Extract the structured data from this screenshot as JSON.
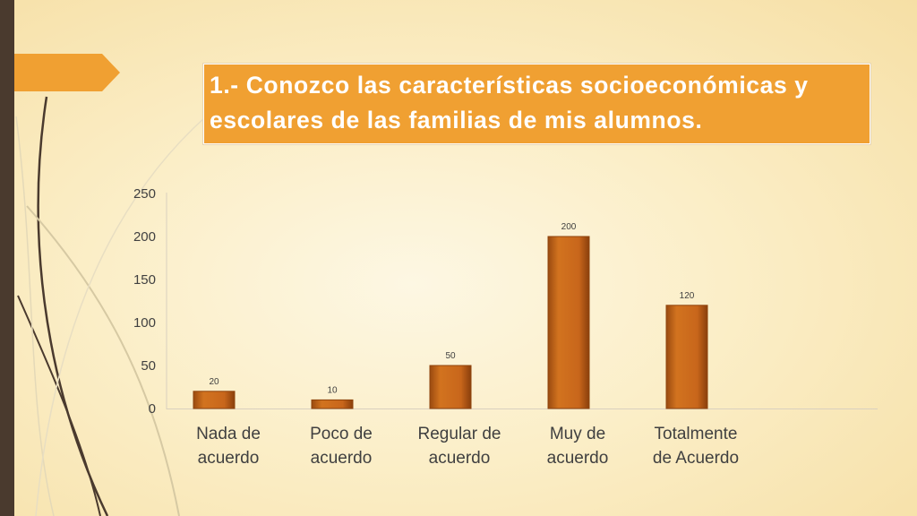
{
  "title": "1.- Conozco las características  socioeconómicas y escolares de las familias de mis alumnos.",
  "colors": {
    "bar": "#c8661b",
    "bar_dark": "#8f440d",
    "title_bg": "#f0a032",
    "sidebar": "#4a3a2e"
  },
  "chart_data": {
    "type": "bar",
    "categories": [
      "Nada de acuerdo",
      "Poco de acuerdo",
      "Regular de acuerdo",
      "Muy de acuerdo",
      "Totalmente de Acuerdo"
    ],
    "category_lines": [
      [
        "Nada de",
        "acuerdo"
      ],
      [
        "Poco de",
        "acuerdo"
      ],
      [
        "Regular de",
        "acuerdo"
      ],
      [
        "Muy de",
        "acuerdo"
      ],
      [
        "Totalmente",
        "de Acuerdo"
      ]
    ],
    "values": [
      20,
      10,
      50,
      200,
      120
    ],
    "ylim": [
      0,
      250
    ],
    "yticks": [
      0,
      50,
      100,
      150,
      200,
      250
    ],
    "title": "",
    "xlabel": "",
    "ylabel": "",
    "grid": false,
    "legend": "none",
    "data_labels": true
  }
}
